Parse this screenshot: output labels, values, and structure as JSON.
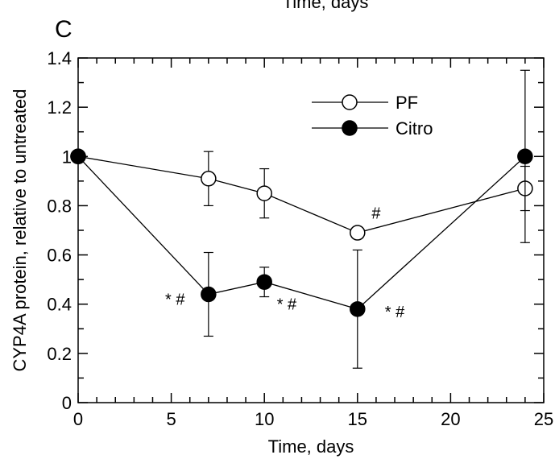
{
  "top_cut_label": "Time, days",
  "panel_letter": "C",
  "colors": {
    "axis": "#000000",
    "open_fill": "#ffffff",
    "filled_fill": "#000000"
  },
  "chart_data": {
    "type": "line",
    "xlabel": "Time, days",
    "ylabel": "CYP4A protein, relative to untreated",
    "xlim": [
      0,
      25
    ],
    "ylim": [
      0,
      1.4
    ],
    "xticks": [
      0,
      5,
      10,
      15,
      20,
      25
    ],
    "xtick_labels": [
      "0",
      "5",
      "10",
      "15",
      "20",
      "25"
    ],
    "yticks": [
      0,
      0.2,
      0.4,
      0.6,
      0.8,
      1,
      1.2,
      1.4
    ],
    "ytick_labels": [
      "0",
      "0.2",
      "0.4",
      "0.6",
      "0.8",
      "1",
      "1.2",
      "1.4"
    ],
    "legend_position": "top-right",
    "series": [
      {
        "name": "PF",
        "marker": "open-circle",
        "x": [
          0,
          7,
          10,
          15,
          24
        ],
        "y": [
          1.0,
          0.91,
          0.85,
          0.69,
          0.87
        ],
        "err": [
          0,
          0.11,
          0.1,
          0.02,
          0.09
        ]
      },
      {
        "name": "Citro",
        "marker": "filled-circle",
        "x": [
          0,
          7,
          10,
          15,
          24
        ],
        "y": [
          1.0,
          0.44,
          0.49,
          0.38,
          1.0
        ],
        "err": [
          0,
          0.17,
          0.06,
          0.24,
          0.35
        ]
      }
    ],
    "annotations": [
      {
        "text": "#",
        "x": 16.0,
        "y": 0.77
      },
      {
        "text": "* #",
        "x": 5.2,
        "y": 0.42
      },
      {
        "text": "* #",
        "x": 11.2,
        "y": 0.4
      },
      {
        "text": "* #",
        "x": 17.0,
        "y": 0.37
      }
    ]
  }
}
